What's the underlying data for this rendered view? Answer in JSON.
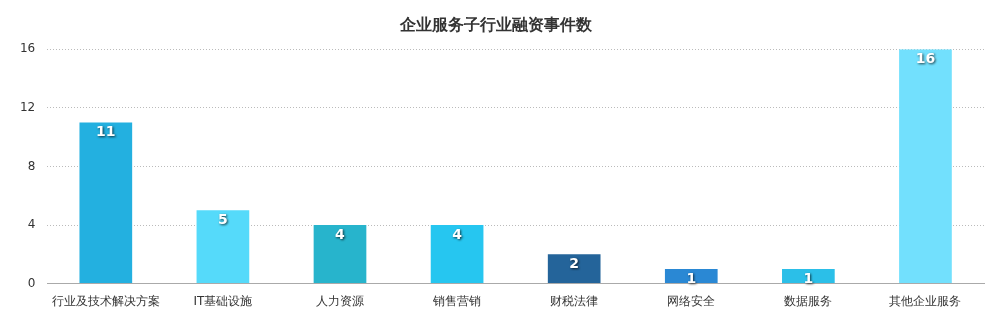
{
  "chart_data": {
    "type": "bar",
    "title": "企业服务子行业融资事件数",
    "categories": [
      "行业及技术解决方案",
      "IT基础设施",
      "人力资源",
      "销售营销",
      "财税法律",
      "网络安全",
      "数据服务",
      "其他企业服务"
    ],
    "values": [
      11,
      5,
      4,
      4,
      2,
      1,
      1,
      16
    ],
    "colors": [
      "#23b0e0",
      "#55dafa",
      "#27b4cc",
      "#26c6f0",
      "#24649a",
      "#2a88d4",
      "#2bbfe8",
      "#72e0fd"
    ],
    "ylim": [
      0,
      16
    ],
    "yticks": [
      0,
      4,
      8,
      12,
      16
    ],
    "grid": "y",
    "data_labels": true,
    "legend": false
  }
}
